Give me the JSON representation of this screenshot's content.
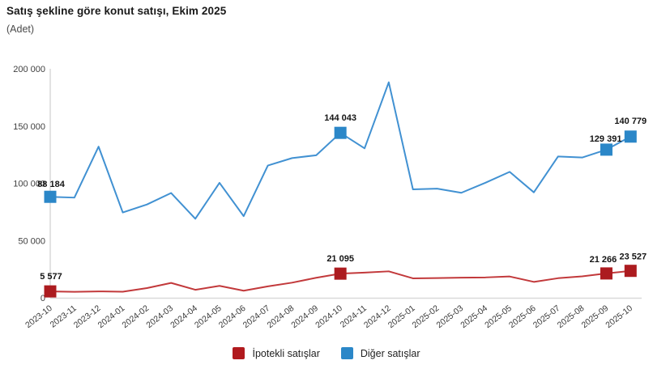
{
  "title": "Satış şekline göre konut satışı, Ekim 2025",
  "subtitle": "(Adet)",
  "legend": {
    "items": [
      {
        "id": "ipotekli",
        "label": "İpotekli satışlar",
        "color": "#B11A1E"
      },
      {
        "id": "diger",
        "label": "Diğer satışlar",
        "color": "#2B87C8"
      }
    ]
  },
  "colors": {
    "axis_line": "#d9d9d9",
    "tick_text": "#404040",
    "value_label_text": "#141414"
  },
  "chart_data": {
    "type": "line",
    "title": "Satış şekline göre konut satışı, Ekim 2025",
    "ylabel": "(Adet)",
    "ylim": [
      0,
      200000
    ],
    "yticks": [
      0,
      50000,
      100000,
      150000,
      200000
    ],
    "ytick_labels": [
      "0",
      "50 000",
      "100 000",
      "150 000",
      "200 000"
    ],
    "grid": false,
    "legend_position": "bottom",
    "x": [
      "2023-10",
      "2023-11",
      "2023-12",
      "2024-01",
      "2024-02",
      "2024-03",
      "2024-04",
      "2024-05",
      "2024-06",
      "2024-07",
      "2024-08",
      "2024-09",
      "2024-10",
      "2024-11",
      "2024-12",
      "2025-01",
      "2025-02",
      "2025-03",
      "2025-04",
      "2025-05",
      "2025-06",
      "2025-07",
      "2025-08",
      "2025-09",
      "2025-10"
    ],
    "series": [
      {
        "name": "İpotekli satışlar",
        "line_color": "#C2393B",
        "marker_color": "#AC1B1F",
        "values": [
          5577,
          5200,
          5600,
          5300,
          8500,
          13000,
          7000,
          10400,
          6200,
          10000,
          13200,
          17500,
          21095,
          22000,
          23100,
          17000,
          17200,
          17600,
          17800,
          18600,
          13900,
          17100,
          18700,
          21266,
          23527
        ],
        "labeled_points": [
          {
            "index": 0,
            "text": "5 577",
            "dx": 1,
            "dy": -15,
            "anchor": "middle"
          },
          {
            "index": 12,
            "text": "21 095",
            "dx": 0,
            "dy": -15,
            "anchor": "middle"
          },
          {
            "index": 23,
            "text": "21 266",
            "dx": -4,
            "dy": -14,
            "anchor": "middle"
          },
          {
            "index": 24,
            "text": "23 527",
            "dx": 3,
            "dy": -14,
            "anchor": "middle"
          }
        ]
      },
      {
        "name": "Diğer satışlar",
        "line_color": "#4191D2",
        "marker_color": "#2B87C8",
        "values": [
          88184,
          87500,
          132000,
          74500,
          81500,
          91500,
          69000,
          100400,
          71300,
          115500,
          122000,
          124500,
          144043,
          130500,
          188200,
          94700,
          95300,
          91700,
          100500,
          110000,
          92100,
          123400,
          122500,
          129391,
          140779
        ],
        "labeled_points": [
          {
            "index": 0,
            "text": "88 184",
            "dx": 1,
            "dy": -12,
            "anchor": "middle"
          },
          {
            "index": 12,
            "text": "144 043",
            "dx": 0,
            "dy": -15,
            "anchor": "middle"
          },
          {
            "index": 23,
            "text": "129 391",
            "dx": 19,
            "dy": -10,
            "anchor": "end"
          },
          {
            "index": 24,
            "text": "140 779",
            "dx": 0,
            "dy": -16,
            "anchor": "middle"
          }
        ]
      }
    ]
  }
}
